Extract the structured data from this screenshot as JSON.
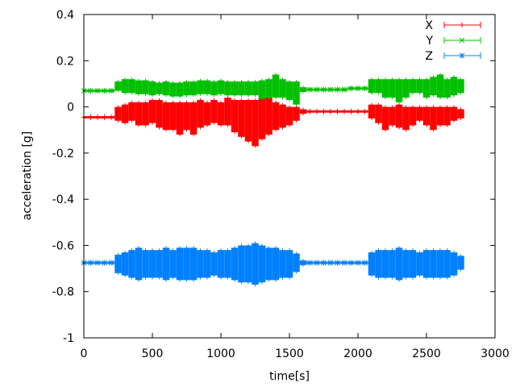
{
  "chart_data": {
    "type": "scatter",
    "style": "errorbars",
    "title": "",
    "xlabel": "time[s]",
    "ylabel": "acceleration [g]",
    "xlim": [
      0,
      3000
    ],
    "ylim": [
      -1,
      0.4
    ],
    "xticks": [
      0,
      500,
      1000,
      1500,
      2000,
      2500,
      3000
    ],
    "yticks": [
      0.4,
      0.2,
      0,
      -0.2,
      -0.4,
      -0.6,
      -0.8,
      -1
    ],
    "ytick_labels": [
      "0.4",
      "0.2",
      "0",
      "-0.2",
      "-0.4",
      "-0.6",
      "-0.8",
      "-1"
    ],
    "grid": false,
    "legend_position": "top-right",
    "x": [
      0,
      50,
      100,
      150,
      200,
      250,
      300,
      350,
      400,
      450,
      500,
      550,
      600,
      650,
      700,
      750,
      800,
      850,
      900,
      950,
      1000,
      1050,
      1100,
      1150,
      1200,
      1250,
      1300,
      1350,
      1400,
      1450,
      1500,
      1550,
      1600,
      1650,
      1700,
      1750,
      1800,
      1850,
      1900,
      1950,
      2000,
      2050,
      2100,
      2150,
      2200,
      2250,
      2300,
      2350,
      2400,
      2450,
      2500,
      2550,
      2600,
      2650,
      2700,
      2750
    ],
    "series": [
      {
        "name": "X",
        "color": "#ff0000",
        "marker": "plus",
        "values": [
          -0.045,
          -0.045,
          -0.045,
          -0.045,
          -0.045,
          -0.03,
          -0.03,
          -0.02,
          -0.03,
          -0.03,
          -0.02,
          -0.03,
          -0.04,
          -0.04,
          -0.05,
          -0.04,
          -0.05,
          -0.03,
          -0.03,
          -0.02,
          -0.03,
          -0.02,
          -0.04,
          -0.05,
          -0.06,
          -0.07,
          -0.05,
          -0.04,
          -0.04,
          -0.04,
          -0.04,
          -0.03,
          -0.02,
          -0.02,
          -0.02,
          -0.02,
          -0.02,
          -0.02,
          -0.02,
          -0.02,
          -0.02,
          -0.02,
          -0.02,
          -0.03,
          -0.05,
          -0.04,
          -0.04,
          -0.05,
          -0.04,
          -0.03,
          -0.04,
          -0.05,
          -0.04,
          -0.04,
          -0.03,
          -0.03
        ],
        "errors": [
          0.005,
          0.005,
          0.005,
          0.005,
          0.005,
          0.03,
          0.04,
          0.04,
          0.05,
          0.05,
          0.05,
          0.06,
          0.06,
          0.06,
          0.07,
          0.06,
          0.07,
          0.06,
          0.05,
          0.05,
          0.05,
          0.06,
          0.07,
          0.08,
          0.09,
          0.1,
          0.09,
          0.08,
          0.06,
          0.05,
          0.04,
          0.03,
          0.01,
          0.005,
          0.005,
          0.005,
          0.005,
          0.005,
          0.005,
          0.005,
          0.005,
          0.005,
          0.03,
          0.04,
          0.05,
          0.04,
          0.05,
          0.05,
          0.04,
          0.03,
          0.04,
          0.05,
          0.04,
          0.04,
          0.03,
          0.02
        ]
      },
      {
        "name": "Y",
        "color": "#00c000",
        "marker": "cross",
        "values": [
          0.07,
          0.07,
          0.07,
          0.07,
          0.07,
          0.09,
          0.09,
          0.09,
          0.085,
          0.085,
          0.08,
          0.08,
          0.08,
          0.075,
          0.075,
          0.08,
          0.08,
          0.085,
          0.085,
          0.08,
          0.085,
          0.08,
          0.08,
          0.08,
          0.08,
          0.08,
          0.075,
          0.08,
          0.09,
          0.08,
          0.07,
          0.06,
          0.075,
          0.075,
          0.075,
          0.075,
          0.075,
          0.075,
          0.075,
          0.08,
          0.08,
          0.08,
          0.09,
          0.09,
          0.08,
          0.08,
          0.07,
          0.08,
          0.09,
          0.09,
          0.08,
          0.09,
          0.09,
          0.08,
          0.09,
          0.09
        ],
        "errors": [
          0.005,
          0.005,
          0.005,
          0.005,
          0.005,
          0.02,
          0.03,
          0.03,
          0.03,
          0.03,
          0.03,
          0.025,
          0.03,
          0.03,
          0.03,
          0.03,
          0.03,
          0.03,
          0.03,
          0.03,
          0.03,
          0.03,
          0.03,
          0.03,
          0.03,
          0.03,
          0.04,
          0.04,
          0.05,
          0.04,
          0.04,
          0.05,
          0.01,
          0.005,
          0.005,
          0.005,
          0.005,
          0.005,
          0.005,
          0.005,
          0.005,
          0.005,
          0.03,
          0.03,
          0.04,
          0.04,
          0.05,
          0.04,
          0.03,
          0.03,
          0.04,
          0.04,
          0.05,
          0.04,
          0.04,
          0.03
        ]
      },
      {
        "name": "Z",
        "color": "#0080ff",
        "marker": "star",
        "values": [
          -0.675,
          -0.675,
          -0.675,
          -0.675,
          -0.675,
          -0.68,
          -0.68,
          -0.68,
          -0.68,
          -0.68,
          -0.68,
          -0.68,
          -0.68,
          -0.68,
          -0.68,
          -0.68,
          -0.68,
          -0.68,
          -0.68,
          -0.68,
          -0.68,
          -0.68,
          -0.68,
          -0.68,
          -0.68,
          -0.68,
          -0.68,
          -0.68,
          -0.68,
          -0.68,
          -0.68,
          -0.675,
          -0.675,
          -0.675,
          -0.675,
          -0.675,
          -0.675,
          -0.675,
          -0.675,
          -0.675,
          -0.675,
          -0.675,
          -0.68,
          -0.68,
          -0.68,
          -0.68,
          -0.68,
          -0.68,
          -0.68,
          -0.68,
          -0.68,
          -0.68,
          -0.68,
          -0.68,
          -0.68,
          -0.675
        ],
        "errors": [
          0.005,
          0.005,
          0.005,
          0.005,
          0.005,
          0.04,
          0.05,
          0.06,
          0.07,
          0.06,
          0.06,
          0.06,
          0.07,
          0.06,
          0.07,
          0.07,
          0.07,
          0.06,
          0.06,
          0.05,
          0.06,
          0.06,
          0.07,
          0.08,
          0.08,
          0.09,
          0.08,
          0.07,
          0.07,
          0.06,
          0.06,
          0.04,
          0.01,
          0.005,
          0.005,
          0.005,
          0.005,
          0.005,
          0.005,
          0.005,
          0.005,
          0.005,
          0.05,
          0.06,
          0.06,
          0.06,
          0.07,
          0.06,
          0.06,
          0.05,
          0.06,
          0.06,
          0.06,
          0.06,
          0.05,
          0.03
        ]
      }
    ]
  }
}
